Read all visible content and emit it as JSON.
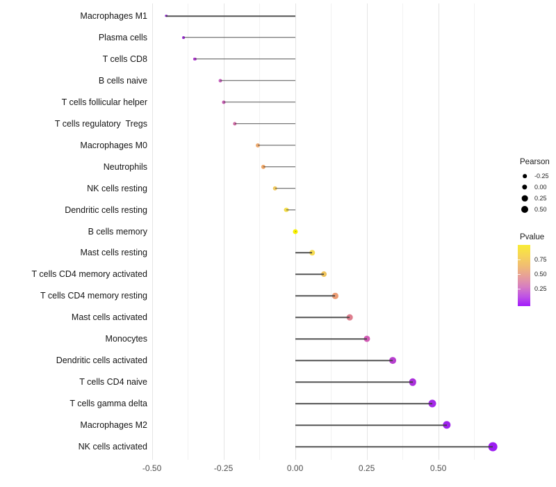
{
  "chart_data": {
    "type": "scatter",
    "variant": "lollipop",
    "title": "",
    "xlabel": "",
    "ylabel": "",
    "x_tick_labels": [
      "-0.50",
      "-0.25",
      "0.00",
      "0.25",
      "0.50"
    ],
    "x_tick_values": [
      -0.5,
      -0.25,
      0.0,
      0.25,
      0.5
    ],
    "x_minor_values": [
      -0.375,
      -0.125,
      0.125,
      0.375,
      0.625
    ],
    "xlim": [
      -0.504,
      0.744
    ],
    "grid": true,
    "baseline_x": 0,
    "points": [
      {
        "label": "Macrophages M1",
        "pearson": -0.45,
        "color": "#8a22cc"
      },
      {
        "label": "Plasma cells",
        "pearson": -0.39,
        "color": "#9c2bd6"
      },
      {
        "label": "T cells CD8",
        "pearson": -0.35,
        "color": "#b136d2"
      },
      {
        "label": "B cells naive",
        "pearson": -0.26,
        "color": "#c563bc"
      },
      {
        "label": "T cells follicular helper",
        "pearson": -0.25,
        "color": "#c45bb0"
      },
      {
        "label": "T cells regulatory  Tregs",
        "pearson": -0.21,
        "color": "#ce6ba4"
      },
      {
        "label": "Macrophages M0",
        "pearson": -0.13,
        "color": "#efac72"
      },
      {
        "label": "Neutrophils",
        "pearson": -0.11,
        "color": "#eda464"
      },
      {
        "label": "NK cells resting",
        "pearson": -0.07,
        "color": "#f0c95e"
      },
      {
        "label": "Dendritic cells resting",
        "pearson": -0.03,
        "color": "#f2dc48"
      },
      {
        "label": "B cells memory",
        "pearson": 0.0,
        "color": "#f8f000"
      },
      {
        "label": "Mast cells resting",
        "pearson": 0.06,
        "color": "#f5db52"
      },
      {
        "label": "T cells CD4 memory activated",
        "pearson": 0.1,
        "color": "#efc35a"
      },
      {
        "label": "T cells CD4 memory resting",
        "pearson": 0.14,
        "color": "#ec9c74"
      },
      {
        "label": "Mast cells activated",
        "pearson": 0.19,
        "color": "#de7e8e"
      },
      {
        "label": "Monocytes",
        "pearson": 0.25,
        "color": "#d15ab4"
      },
      {
        "label": "Dendritic cells activated",
        "pearson": 0.34,
        "color": "#b83fd0"
      },
      {
        "label": "T cells CD4 naive",
        "pearson": 0.41,
        "color": "#ab30dc"
      },
      {
        "label": "T cells gamma delta",
        "pearson": 0.48,
        "color": "#a429e8"
      },
      {
        "label": "Macrophages M2",
        "pearson": 0.53,
        "color": "#9e23ee"
      },
      {
        "label": "NK cells activated",
        "pearson": 0.69,
        "color": "#9c1df2"
      }
    ],
    "legend": {
      "position": "right",
      "size_legend": {
        "title": "Pearson",
        "entries": [
          {
            "label": "-0.25",
            "diameter": 5.7
          },
          {
            "label": "0.00",
            "diameter": 7.3
          },
          {
            "label": "0.25",
            "diameter": 8.7
          },
          {
            "label": "0.50",
            "diameter": 10.0
          }
        ]
      },
      "color_legend": {
        "title": "Pvalue",
        "gradient_top_color": "#f9ec35",
        "gradient_bottom_color": "#a21bfb",
        "tick_labels": [
          "0.75",
          "0.50",
          "0.25"
        ],
        "tick_values": [
          0.75,
          0.5,
          0.25
        ],
        "range": [
          1.0,
          0.0
        ]
      }
    }
  },
  "layout_colors": {
    "background": "#ffffff",
    "stem": "#3f3f3f",
    "grid_major": "#e4e4e4",
    "grid_minor": "#f2f2f2",
    "axis_text": "#4d4d4d"
  }
}
